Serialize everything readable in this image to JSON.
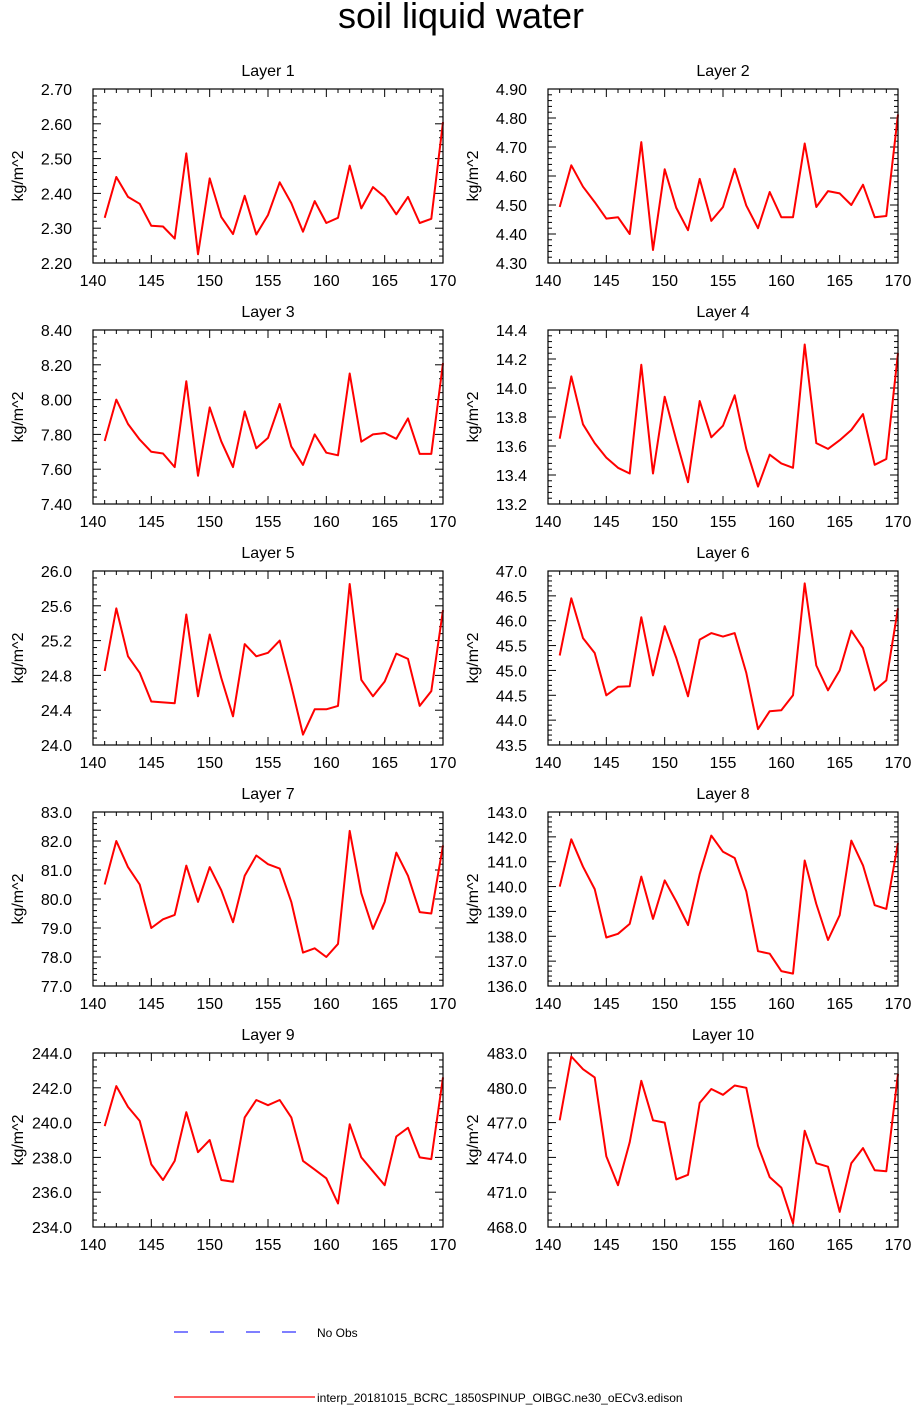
{
  "title": "soil liquid water",
  "legend": {
    "obs_label": "No Obs",
    "obs_color": "#3333ff",
    "model_label": "interp_20181015_BCRC_1850SPINUP_OIBGC.ne30_oECv3.edison",
    "model_color": "#ff0000"
  },
  "chart_data": [
    {
      "type": "line",
      "title": "Layer 1",
      "ylabel": "kg/m^2",
      "xlim": [
        140,
        170
      ],
      "ylim": [
        2.2,
        2.7
      ],
      "xticks": [
        "140",
        "145",
        "150",
        "155",
        "160",
        "165",
        "170"
      ],
      "yticks": [
        "2.20",
        "2.30",
        "2.40",
        "2.50",
        "2.60",
        "2.70"
      ],
      "series": [
        {
          "color": "#ff0000",
          "x": [
            141,
            142,
            143,
            144,
            145,
            146,
            147,
            148,
            149,
            150,
            151,
            152,
            153,
            154,
            155,
            156,
            157,
            158,
            159,
            160,
            161,
            162,
            163,
            164,
            165,
            166,
            167,
            168,
            169,
            170
          ],
          "values": [
            2.33,
            2.447,
            2.39,
            2.37,
            2.307,
            2.305,
            2.27,
            2.515,
            2.225,
            2.443,
            2.332,
            2.283,
            2.393,
            2.282,
            2.338,
            2.432,
            2.372,
            2.29,
            2.378,
            2.315,
            2.33,
            2.48,
            2.357,
            2.418,
            2.39,
            2.34,
            2.39,
            2.315,
            2.327,
            2.605
          ]
        }
      ]
    },
    {
      "type": "line",
      "title": "Layer 2",
      "ylabel": "kg/m^2",
      "xlim": [
        140,
        170
      ],
      "ylim": [
        4.3,
        4.9
      ],
      "xticks": [
        "140",
        "145",
        "150",
        "155",
        "160",
        "165",
        "170"
      ],
      "yticks": [
        "4.30",
        "4.40",
        "4.50",
        "4.60",
        "4.70",
        "4.80",
        "4.90"
      ],
      "series": [
        {
          "color": "#ff0000",
          "x": [
            141,
            142,
            143,
            144,
            145,
            146,
            147,
            148,
            149,
            150,
            151,
            152,
            153,
            154,
            155,
            156,
            157,
            158,
            159,
            160,
            161,
            162,
            163,
            164,
            165,
            166,
            167,
            168,
            169,
            170
          ],
          "values": [
            4.493,
            4.637,
            4.563,
            4.51,
            4.453,
            4.458,
            4.4,
            4.717,
            4.345,
            4.623,
            4.49,
            4.413,
            4.59,
            4.445,
            4.493,
            4.625,
            4.498,
            4.42,
            4.545,
            4.458,
            4.458,
            4.712,
            4.493,
            4.548,
            4.54,
            4.5,
            4.57,
            4.458,
            4.462,
            4.812
          ]
        }
      ]
    },
    {
      "type": "line",
      "title": "Layer 3",
      "ylabel": "kg/m^2",
      "xlim": [
        140,
        170
      ],
      "ylim": [
        7.4,
        8.4
      ],
      "xticks": [
        "140",
        "145",
        "150",
        "155",
        "160",
        "165",
        "170"
      ],
      "yticks": [
        "7.40",
        "7.60",
        "7.80",
        "8.00",
        "8.20",
        "8.40"
      ],
      "series": [
        {
          "color": "#ff0000",
          "x": [
            141,
            142,
            143,
            144,
            145,
            146,
            147,
            148,
            149,
            150,
            151,
            152,
            153,
            154,
            155,
            156,
            157,
            158,
            159,
            160,
            161,
            162,
            163,
            164,
            165,
            166,
            167,
            168,
            169,
            170
          ],
          "values": [
            7.762,
            8.0,
            7.86,
            7.77,
            7.7,
            7.69,
            7.612,
            8.105,
            7.562,
            7.955,
            7.76,
            7.612,
            7.932,
            7.72,
            7.78,
            7.975,
            7.73,
            7.625,
            7.8,
            7.695,
            7.68,
            8.15,
            7.758,
            7.8,
            7.808,
            7.775,
            7.892,
            7.688,
            7.688,
            8.21
          ]
        }
      ]
    },
    {
      "type": "line",
      "title": "Layer 4",
      "ylabel": "kg/m^2",
      "xlim": [
        140,
        170
      ],
      "ylim": [
        13.2,
        14.4
      ],
      "xticks": [
        "140",
        "145",
        "150",
        "155",
        "160",
        "165",
        "170"
      ],
      "yticks": [
        "13.2",
        "13.4",
        "13.6",
        "13.8",
        "14.0",
        "14.2",
        "14.4"
      ],
      "series": [
        {
          "color": "#ff0000",
          "x": [
            141,
            142,
            143,
            144,
            145,
            146,
            147,
            148,
            149,
            150,
            151,
            152,
            153,
            154,
            155,
            156,
            157,
            158,
            159,
            160,
            161,
            162,
            163,
            164,
            165,
            166,
            167,
            168,
            169,
            170
          ],
          "values": [
            13.65,
            14.08,
            13.75,
            13.62,
            13.52,
            13.45,
            13.41,
            14.16,
            13.41,
            13.94,
            13.64,
            13.35,
            13.91,
            13.66,
            13.74,
            13.95,
            13.58,
            13.32,
            13.54,
            13.48,
            13.45,
            14.3,
            13.62,
            13.58,
            13.64,
            13.71,
            13.82,
            13.47,
            13.51,
            14.24
          ]
        }
      ]
    },
    {
      "type": "line",
      "title": "Layer 5",
      "ylabel": "kg/m^2",
      "xlim": [
        140,
        170
      ],
      "ylim": [
        24.0,
        26.0
      ],
      "xticks": [
        "140",
        "145",
        "150",
        "155",
        "160",
        "165",
        "170"
      ],
      "yticks": [
        "24.0",
        "24.4",
        "24.8",
        "25.2",
        "25.6",
        "26.0"
      ],
      "series": [
        {
          "color": "#ff0000",
          "x": [
            141,
            142,
            143,
            144,
            145,
            146,
            147,
            148,
            149,
            150,
            151,
            152,
            153,
            154,
            155,
            156,
            157,
            158,
            159,
            160,
            161,
            162,
            163,
            164,
            165,
            166,
            167,
            168,
            169,
            170
          ],
          "values": [
            24.85,
            25.57,
            25.02,
            24.83,
            24.5,
            24.49,
            24.48,
            25.5,
            24.56,
            25.27,
            24.77,
            24.33,
            25.16,
            25.02,
            25.06,
            25.2,
            24.68,
            24.12,
            24.41,
            24.41,
            24.45,
            25.85,
            24.75,
            24.56,
            24.73,
            25.05,
            24.99,
            24.45,
            24.62,
            25.55
          ]
        }
      ]
    },
    {
      "type": "line",
      "title": "Layer 6",
      "ylabel": "kg/m^2",
      "xlim": [
        140,
        170
      ],
      "ylim": [
        43.5,
        47.0
      ],
      "xticks": [
        "140",
        "145",
        "150",
        "155",
        "160",
        "165",
        "170"
      ],
      "yticks": [
        "43.5",
        "44.0",
        "44.5",
        "45.0",
        "45.5",
        "46.0",
        "46.5",
        "47.0"
      ],
      "series": [
        {
          "color": "#ff0000",
          "x": [
            141,
            142,
            143,
            144,
            145,
            146,
            147,
            148,
            149,
            150,
            151,
            152,
            153,
            154,
            155,
            156,
            157,
            158,
            159,
            160,
            161,
            162,
            163,
            164,
            165,
            166,
            167,
            168,
            169,
            170
          ],
          "values": [
            45.3,
            46.45,
            45.65,
            45.35,
            44.5,
            44.67,
            44.68,
            46.07,
            44.9,
            45.89,
            45.25,
            44.48,
            45.62,
            45.75,
            45.68,
            45.75,
            44.95,
            43.82,
            44.18,
            44.2,
            44.5,
            46.75,
            45.1,
            44.6,
            45.0,
            45.8,
            45.45,
            44.6,
            44.8,
            46.25
          ]
        }
      ]
    },
    {
      "type": "line",
      "title": "Layer 7",
      "ylabel": "kg/m^2",
      "xlim": [
        140,
        170
      ],
      "ylim": [
        77.0,
        83.0
      ],
      "xticks": [
        "140",
        "145",
        "150",
        "155",
        "160",
        "165",
        "170"
      ],
      "yticks": [
        "77.0",
        "78.0",
        "79.0",
        "80.0",
        "81.0",
        "82.0",
        "83.0"
      ],
      "series": [
        {
          "color": "#ff0000",
          "x": [
            141,
            142,
            143,
            144,
            145,
            146,
            147,
            148,
            149,
            150,
            151,
            152,
            153,
            154,
            155,
            156,
            157,
            158,
            159,
            160,
            161,
            162,
            163,
            164,
            165,
            166,
            167,
            168,
            169,
            170
          ],
          "values": [
            80.5,
            82.0,
            81.1,
            80.5,
            79.0,
            79.3,
            79.45,
            81.15,
            79.9,
            81.1,
            80.3,
            79.2,
            80.8,
            81.5,
            81.2,
            81.05,
            79.9,
            78.15,
            78.3,
            78.0,
            78.45,
            82.35,
            80.2,
            78.97,
            79.9,
            81.6,
            80.8,
            79.55,
            79.5,
            81.85
          ]
        }
      ]
    },
    {
      "type": "line",
      "title": "Layer 8",
      "ylabel": "kg/m^2",
      "xlim": [
        140,
        170
      ],
      "ylim": [
        136.0,
        143.0
      ],
      "xticks": [
        "140",
        "145",
        "150",
        "155",
        "160",
        "165",
        "170"
      ],
      "yticks": [
        "136.0",
        "137.0",
        "138.0",
        "139.0",
        "140.0",
        "141.0",
        "142.0",
        "143.0"
      ],
      "series": [
        {
          "color": "#ff0000",
          "x": [
            141,
            142,
            143,
            144,
            145,
            146,
            147,
            148,
            149,
            150,
            151,
            152,
            153,
            154,
            155,
            156,
            157,
            158,
            159,
            160,
            161,
            162,
            163,
            164,
            165,
            166,
            167,
            168,
            169,
            170
          ],
          "values": [
            140.0,
            141.9,
            140.8,
            139.9,
            137.95,
            138.1,
            138.5,
            140.4,
            138.7,
            140.25,
            139.4,
            138.45,
            140.5,
            142.05,
            141.4,
            141.15,
            139.8,
            137.4,
            137.3,
            136.6,
            136.5,
            141.05,
            139.3,
            137.85,
            138.85,
            141.85,
            140.85,
            139.25,
            139.1,
            141.75
          ]
        }
      ]
    },
    {
      "type": "line",
      "title": "Layer 9",
      "ylabel": "kg/m^2",
      "xlim": [
        140,
        170
      ],
      "ylim": [
        234.0,
        244.0
      ],
      "xticks": [
        "140",
        "145",
        "150",
        "155",
        "160",
        "165",
        "170"
      ],
      "yticks": [
        "234.0",
        "236.0",
        "238.0",
        "240.0",
        "242.0",
        "244.0"
      ],
      "series": [
        {
          "color": "#ff0000",
          "x": [
            141,
            142,
            143,
            144,
            145,
            146,
            147,
            148,
            149,
            150,
            151,
            152,
            153,
            154,
            155,
            156,
            157,
            158,
            159,
            160,
            161,
            162,
            163,
            164,
            165,
            166,
            167,
            168,
            169,
            170
          ],
          "values": [
            239.8,
            242.1,
            240.9,
            240.1,
            237.6,
            236.7,
            237.8,
            240.6,
            238.3,
            239.0,
            236.7,
            236.6,
            240.3,
            241.3,
            241.0,
            241.3,
            240.3,
            237.8,
            237.3,
            236.8,
            235.35,
            239.9,
            238.0,
            237.2,
            236.4,
            239.2,
            239.7,
            238.0,
            237.9,
            242.6
          ]
        }
      ]
    },
    {
      "type": "line",
      "title": "Layer 10",
      "ylabel": "kg/m^2",
      "xlim": [
        140,
        170
      ],
      "ylim": [
        468.0,
        483.0
      ],
      "xticks": [
        "140",
        "145",
        "150",
        "155",
        "160",
        "165",
        "170"
      ],
      "yticks": [
        "468.0",
        "471.0",
        "474.0",
        "477.0",
        "480.0",
        "483.0"
      ],
      "series": [
        {
          "color": "#ff0000",
          "x": [
            141,
            142,
            143,
            144,
            145,
            146,
            147,
            148,
            149,
            150,
            151,
            152,
            153,
            154,
            155,
            156,
            157,
            158,
            159,
            160,
            161,
            162,
            163,
            164,
            165,
            166,
            167,
            168,
            169,
            170
          ],
          "values": [
            477.2,
            482.7,
            481.6,
            480.9,
            474.1,
            471.6,
            475.3,
            480.6,
            477.2,
            477.0,
            472.1,
            472.5,
            478.7,
            479.9,
            479.4,
            480.2,
            480.0,
            475.0,
            472.3,
            471.4,
            468.3,
            476.3,
            473.5,
            473.2,
            469.3,
            473.5,
            474.8,
            472.9,
            472.8,
            481.2
          ]
        }
      ]
    }
  ]
}
